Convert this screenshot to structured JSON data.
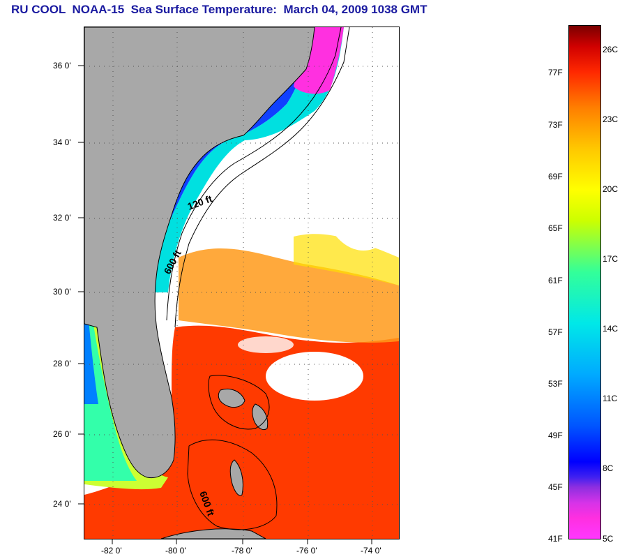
{
  "title": "RU COOL  NOAA-15  Sea Surface Temperature:  March 04, 2009 1038 GMT",
  "map": {
    "lat_labels": [
      "36 0'",
      "34 0'",
      "32 0'",
      "30 0'",
      "28 0'",
      "26 0'",
      "24 0'"
    ],
    "lon_labels": [
      "-82 0'",
      "-80 0'",
      "-78 0'",
      "-76 0'",
      "-74 0'"
    ],
    "contours": [
      {
        "label": "120 ft"
      },
      {
        "label": "600 ft"
      },
      {
        "label": "600 ft"
      }
    ],
    "colors": {
      "land": "#a8a8a8",
      "no_data": "#ffffff",
      "coast": "#000000"
    }
  },
  "colorbar": {
    "fahrenheit_labels": [
      "77F",
      "73F",
      "69F",
      "65F",
      "61F",
      "57F",
      "53F",
      "49F",
      "45F",
      "41F"
    ],
    "celsius_labels": [
      "26C",
      "23C",
      "20C",
      "17C",
      "14C",
      "11C",
      "8C",
      "5C"
    ],
    "range_f": [
      41,
      80
    ],
    "range_c": [
      5,
      27
    ],
    "scale": "rainbow: magenta (cold) to dark red (warm)"
  }
}
